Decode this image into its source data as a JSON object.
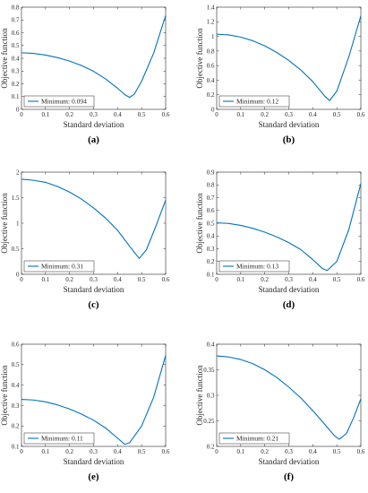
{
  "colors": {
    "series": "#0072bd",
    "axis": "#262626",
    "legend_border": "#262626"
  },
  "chart_data": [
    {
      "type": "line",
      "panel_label": "(a)",
      "xlabel": "Standard deviation",
      "ylabel": "Objective function",
      "xlim": [
        0,
        0.6
      ],
      "ylim": [
        0,
        0.8
      ],
      "xticks": [
        "0",
        "0.1",
        "0.2",
        "0.3",
        "0.4",
        "0.5",
        "0.6"
      ],
      "yticks": [
        "0",
        "0.1",
        "0.2",
        "0.3",
        "0.4",
        "0.5",
        "0.6",
        "0.7",
        "0.8"
      ],
      "legend": "Minimum: 0.094",
      "legend_position": "bottom-left",
      "grid": false,
      "series": [
        {
          "x": [
            0,
            0.05,
            0.1,
            0.15,
            0.2,
            0.25,
            0.3,
            0.35,
            0.4,
            0.43,
            0.45,
            0.47,
            0.5,
            0.55,
            0.6
          ],
          "y": [
            0.443,
            0.438,
            0.425,
            0.405,
            0.378,
            0.343,
            0.298,
            0.238,
            0.165,
            0.115,
            0.094,
            0.12,
            0.22,
            0.44,
            0.735
          ]
        }
      ]
    },
    {
      "type": "line",
      "panel_label": "(b)",
      "xlabel": "Standard deviation",
      "ylabel": "Objective function",
      "xlim": [
        0,
        0.6
      ],
      "ylim": [
        0,
        1.4
      ],
      "xticks": [
        "0",
        "0.1",
        "0.2",
        "0.3",
        "0.4",
        "0.5",
        "0.6"
      ],
      "yticks": [
        "0",
        "0.2",
        "0.4",
        "0.6",
        "0.8",
        "1",
        "1.2",
        "1.4"
      ],
      "legend": "Minimum: 0.12",
      "legend_position": "bottom-left",
      "grid": false,
      "series": [
        {
          "x": [
            0,
            0.05,
            0.1,
            0.15,
            0.2,
            0.25,
            0.3,
            0.35,
            0.4,
            0.45,
            0.47,
            0.5,
            0.55,
            0.6
          ],
          "y": [
            1.03,
            1.02,
            0.99,
            0.94,
            0.87,
            0.78,
            0.67,
            0.54,
            0.38,
            0.18,
            0.12,
            0.25,
            0.72,
            1.28
          ]
        }
      ]
    },
    {
      "type": "line",
      "panel_label": "(c)",
      "xlabel": "Standard deviation",
      "ylabel": "Objective function",
      "xlim": [
        0,
        0.6
      ],
      "ylim": [
        0,
        2
      ],
      "xticks": [
        "0",
        "0.1",
        "0.2",
        "0.3",
        "0.4",
        "0.5",
        "0.6"
      ],
      "yticks": [
        "0",
        "0.5",
        "1",
        "1.5",
        "2"
      ],
      "legend": "Minimum: 0.31",
      "legend_position": "bottom-left",
      "grid": false,
      "series": [
        {
          "x": [
            0,
            0.05,
            0.1,
            0.15,
            0.2,
            0.25,
            0.3,
            0.35,
            0.4,
            0.45,
            0.49,
            0.52,
            0.56,
            0.6
          ],
          "y": [
            1.86,
            1.84,
            1.8,
            1.72,
            1.61,
            1.47,
            1.3,
            1.1,
            0.86,
            0.55,
            0.31,
            0.48,
            0.95,
            1.45
          ]
        }
      ]
    },
    {
      "type": "line",
      "panel_label": "(d)",
      "xlabel": "Standard deviation",
      "ylabel": "Objective function",
      "xlim": [
        0,
        0.6
      ],
      "ylim": [
        0.1,
        0.9
      ],
      "xticks": [
        "0",
        "0.1",
        "0.2",
        "0.3",
        "0.4",
        "0.5",
        "0.6"
      ],
      "yticks": [
        "0.1",
        "0.2",
        "0.3",
        "0.4",
        "0.5",
        "0.6",
        "0.7",
        "0.8",
        "0.9"
      ],
      "legend": "Minimum: 0.13",
      "legend_position": "bottom-left",
      "grid": false,
      "series": [
        {
          "x": [
            0,
            0.05,
            0.1,
            0.15,
            0.2,
            0.25,
            0.3,
            0.35,
            0.4,
            0.44,
            0.46,
            0.5,
            0.55,
            0.6
          ],
          "y": [
            0.503,
            0.498,
            0.483,
            0.46,
            0.43,
            0.393,
            0.348,
            0.293,
            0.215,
            0.145,
            0.13,
            0.2,
            0.45,
            0.81
          ]
        }
      ]
    },
    {
      "type": "line",
      "panel_label": "(e)",
      "xlabel": "Standard deviation",
      "ylabel": "Objective function",
      "xlim": [
        0,
        0.6
      ],
      "ylim": [
        0.1,
        0.6
      ],
      "xticks": [
        "0",
        "0.1",
        "0.2",
        "0.3",
        "0.4",
        "0.5",
        "0.6"
      ],
      "yticks": [
        "0.1",
        "0.2",
        "0.3",
        "0.4",
        "0.5",
        "0.6"
      ],
      "legend": "Minimum: 0.11",
      "legend_position": "bottom-left",
      "grid": false,
      "series": [
        {
          "x": [
            0,
            0.05,
            0.1,
            0.15,
            0.2,
            0.25,
            0.3,
            0.35,
            0.4,
            0.43,
            0.45,
            0.5,
            0.55,
            0.6
          ],
          "y": [
            0.33,
            0.327,
            0.318,
            0.303,
            0.283,
            0.258,
            0.228,
            0.19,
            0.14,
            0.11,
            0.118,
            0.2,
            0.34,
            0.545
          ]
        }
      ]
    },
    {
      "type": "line",
      "panel_label": "(f)",
      "xlabel": "Standard deviation",
      "ylabel": "Objective function",
      "xlim": [
        0,
        0.6
      ],
      "ylim": [
        0.2,
        0.4
      ],
      "xticks": [
        "0",
        "0.1",
        "0.2",
        "0.3",
        "0.4",
        "0.5",
        "0.6"
      ],
      "yticks": [
        "0.2",
        "0.25",
        "0.3",
        "0.35",
        "0.4"
      ],
      "legend": "Minimum: 0.21",
      "legend_position": "bottom-left",
      "grid": false,
      "series": [
        {
          "x": [
            0,
            0.05,
            0.1,
            0.15,
            0.2,
            0.25,
            0.3,
            0.35,
            0.4,
            0.45,
            0.49,
            0.51,
            0.54,
            0.57,
            0.6
          ],
          "y": [
            0.377,
            0.375,
            0.37,
            0.362,
            0.35,
            0.335,
            0.316,
            0.295,
            0.27,
            0.243,
            0.221,
            0.214,
            0.225,
            0.256,
            0.293
          ]
        }
      ]
    }
  ]
}
